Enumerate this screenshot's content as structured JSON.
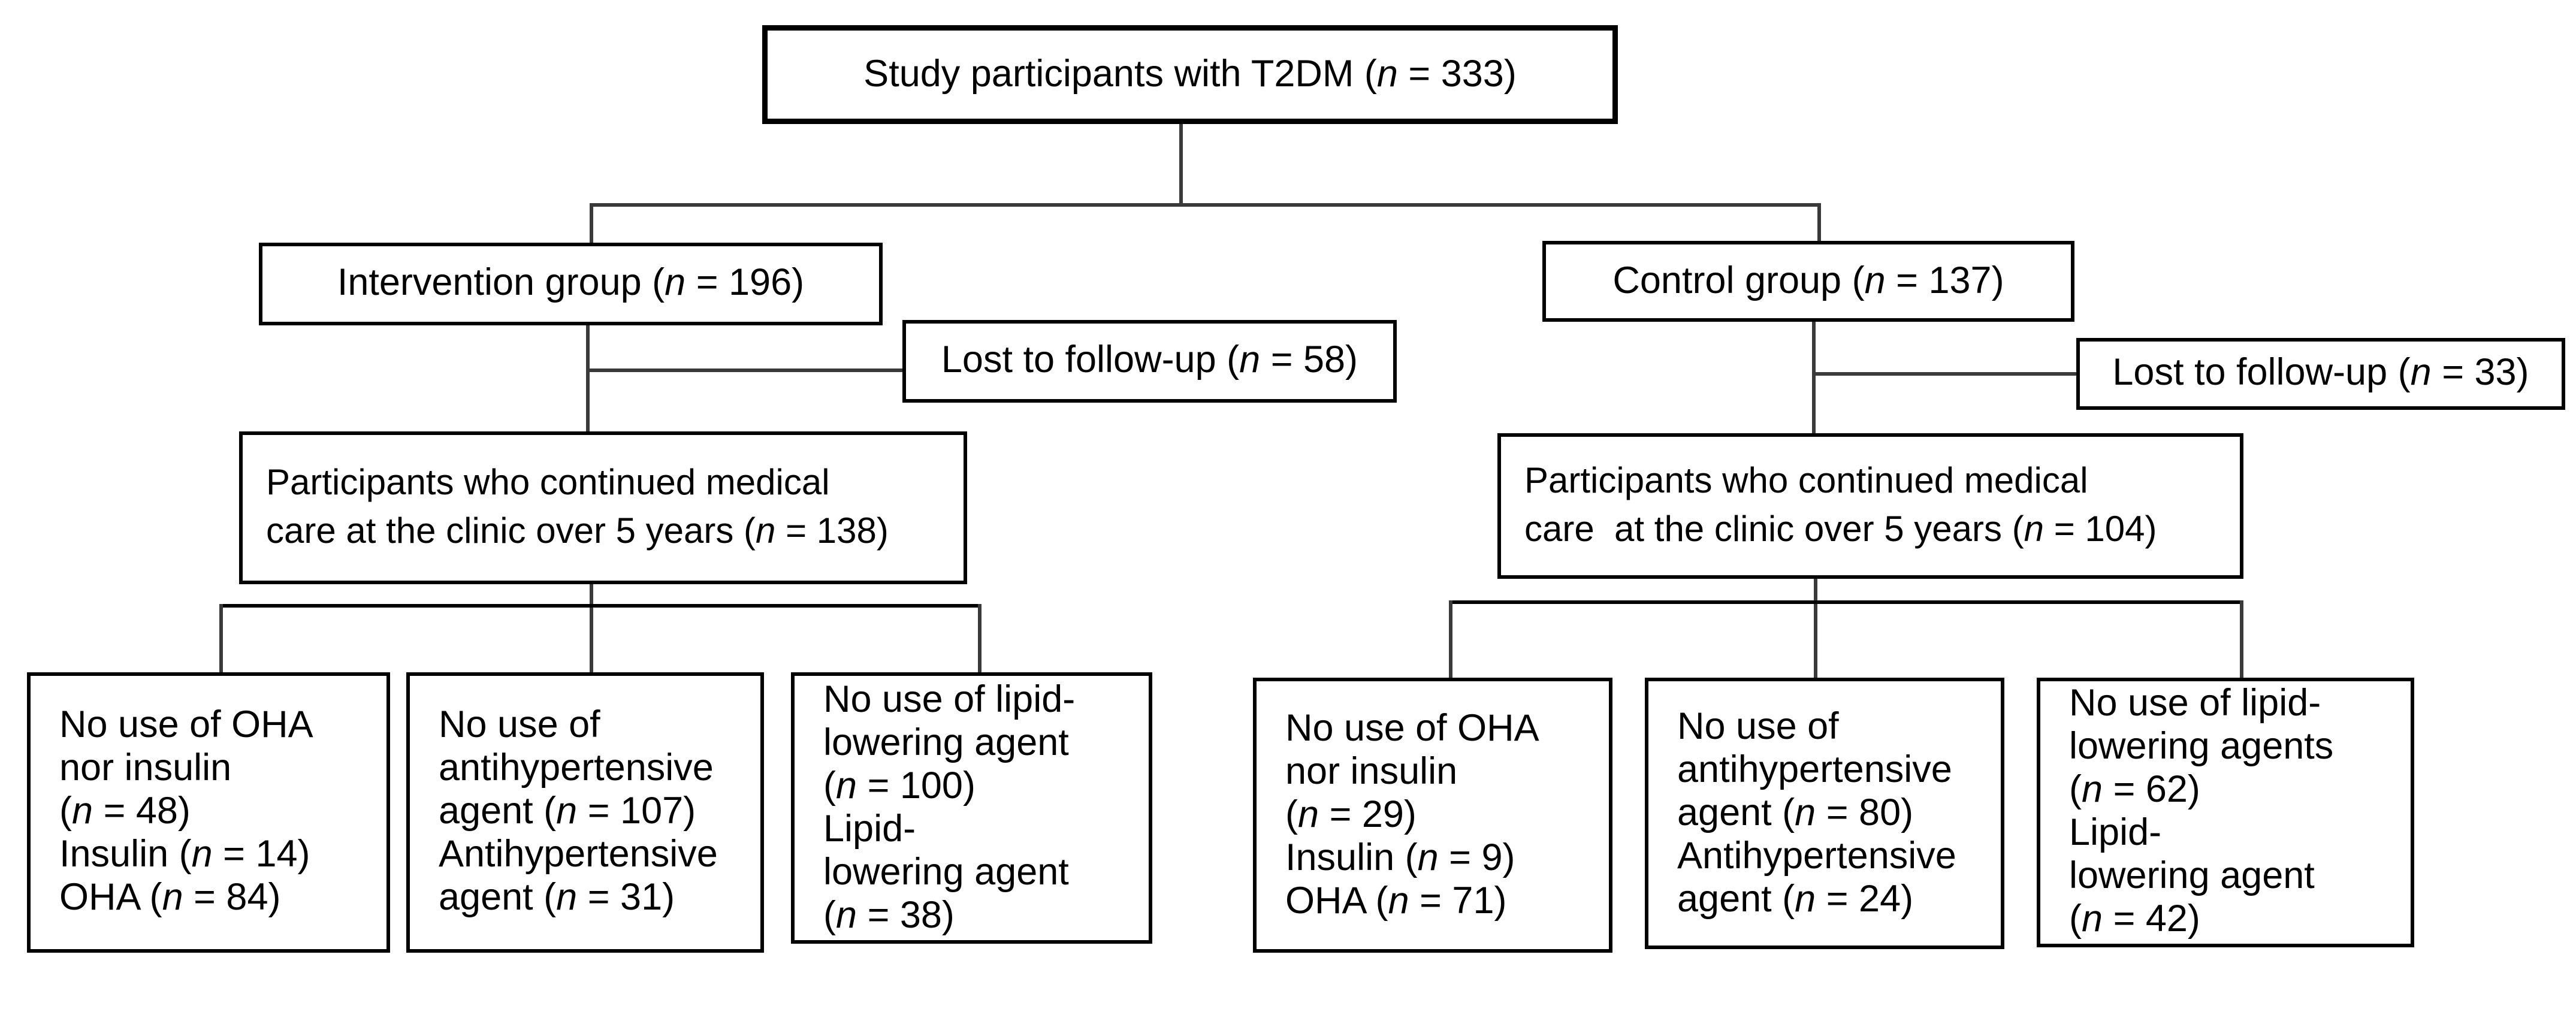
{
  "diagram": {
    "top_box": "Study participants with T2DM (n = 333)",
    "left": {
      "group_box": "Intervention group (n = 196)",
      "lost_box": "Lost to follow-up (n = 58)",
      "continued_box": [
        "Participants who continued medical",
        "care at the clinic over 5 years (n = 138)"
      ],
      "outcome_boxes": [
        {
          "lines": [
            "No use of OHA",
            "nor insulin",
            "(n = 48)",
            "Insulin (n = 14)",
            "OHA (n = 84)"
          ]
        },
        {
          "lines": [
            "No use of",
            "antihypertensive",
            "agent (n = 107)",
            "Antihypertensive",
            "agent (n = 31)"
          ]
        },
        {
          "lines": [
            "No use of lipid-",
            "lowering agent",
            "(n = 100)",
            "Lipid-",
            "lowering agent",
            "(n = 38)"
          ]
        }
      ]
    },
    "right": {
      "group_box": "Control group (n = 137)",
      "lost_box": "Lost to follow-up (n = 33)",
      "continued_box": [
        "Participants who continued medical",
        "care  at the clinic over 5 years (n = 104)"
      ],
      "outcome_boxes": [
        {
          "lines": [
            "No use of OHA",
            "nor insulin",
            "(n = 29)",
            "Insulin (n = 9)",
            "OHA (n = 71)"
          ]
        },
        {
          "lines": [
            "No use of",
            "antihypertensive",
            "agent (n = 80)",
            "Antihypertensive",
            "agent (n = 24)"
          ]
        },
        {
          "lines": [
            "No use of lipid-",
            "lowering agents",
            "(n = 62)",
            "Lipid-",
            "lowering agent",
            "(n = 42)"
          ]
        }
      ]
    }
  }
}
